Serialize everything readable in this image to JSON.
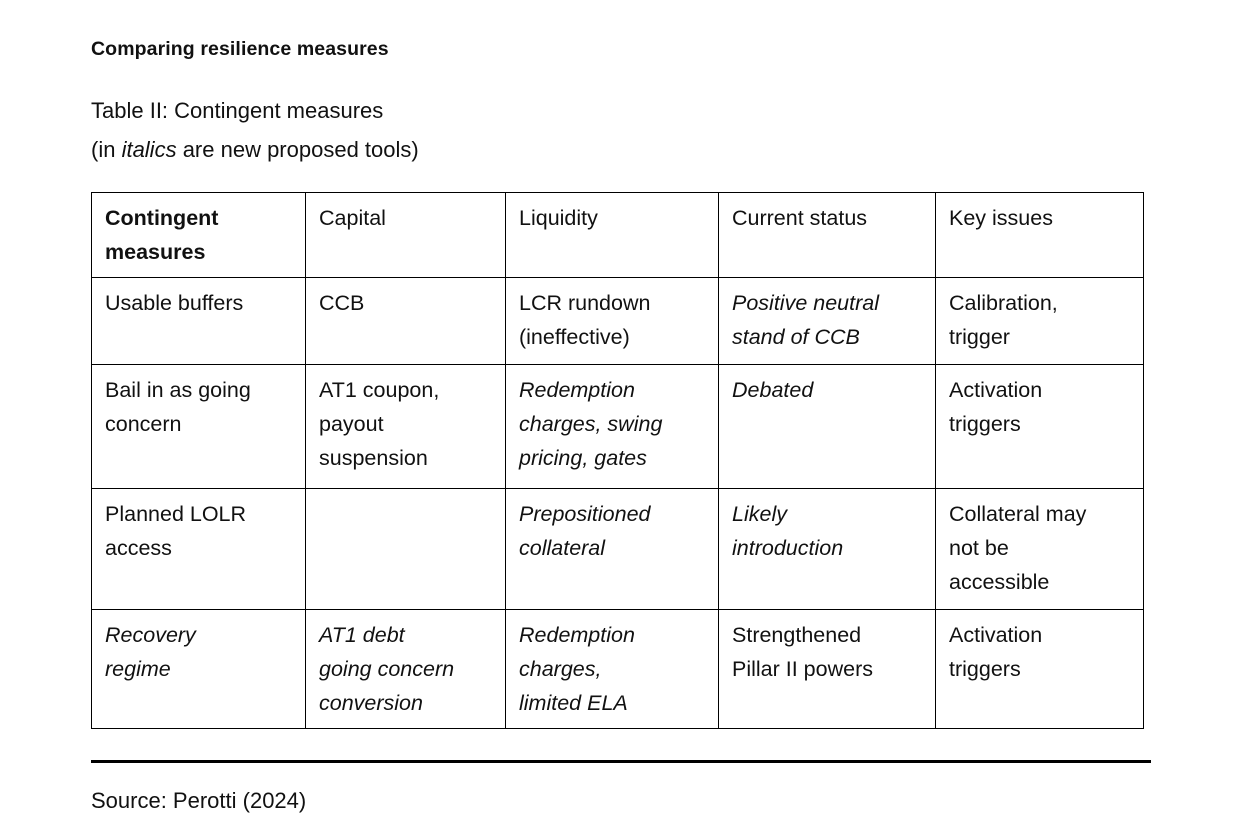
{
  "document": {
    "title": "Comparing resilience measures",
    "caption_line1": "Table II: Contingent measures",
    "caption_line2_prefix": "(in ",
    "caption_line2_italic": "italics",
    "caption_line2_suffix": " are new proposed tools)",
    "source": "Source: Perotti (2024)"
  },
  "table": {
    "headers": [
      {
        "text": "Contingent\nmeasures",
        "style": "bold"
      },
      {
        "text": "Capital"
      },
      {
        "text": "Liquidity"
      },
      {
        "text": "Current status"
      },
      {
        "text": "Key issues"
      }
    ],
    "rows": [
      {
        "cells": [
          {
            "text": "Usable buffers"
          },
          {
            "text": "CCB"
          },
          {
            "text": "LCR rundown\n(ineffective)"
          },
          {
            "text": "Positive neutral\nstand of CCB",
            "style": "italic"
          },
          {
            "text": "Calibration,\ntrigger"
          }
        ]
      },
      {
        "cells": [
          {
            "text": "Bail in as going\nconcern"
          },
          {
            "text": "AT1 coupon,\npayout\nsuspension"
          },
          {
            "text": "Redemption\ncharges, swing\npricing, gates",
            "style": "italic"
          },
          {
            "text": "Debated",
            "style": "italic"
          },
          {
            "text": "Activation\ntriggers"
          }
        ]
      },
      {
        "cells": [
          {
            "text": "Planned LOLR\naccess"
          },
          {
            "text": ""
          },
          {
            "text": "Prepositioned\ncollateral",
            "style": "italic"
          },
          {
            "text": "Likely\nintroduction",
            "style": "italic"
          },
          {
            "text": "Collateral may\nnot be\naccessible"
          }
        ]
      },
      {
        "cells": [
          {
            "text": "Recovery\nregime",
            "style": "italic"
          },
          {
            "text": "AT1 debt\ngoing concern\nconversion",
            "style": "italic"
          },
          {
            "text": "Redemption\ncharges,\nlimited ELA",
            "style": "italic"
          },
          {
            "text": "Strengthened\nPillar II powers"
          },
          {
            "text": "Activation\ntriggers"
          }
        ]
      }
    ]
  }
}
